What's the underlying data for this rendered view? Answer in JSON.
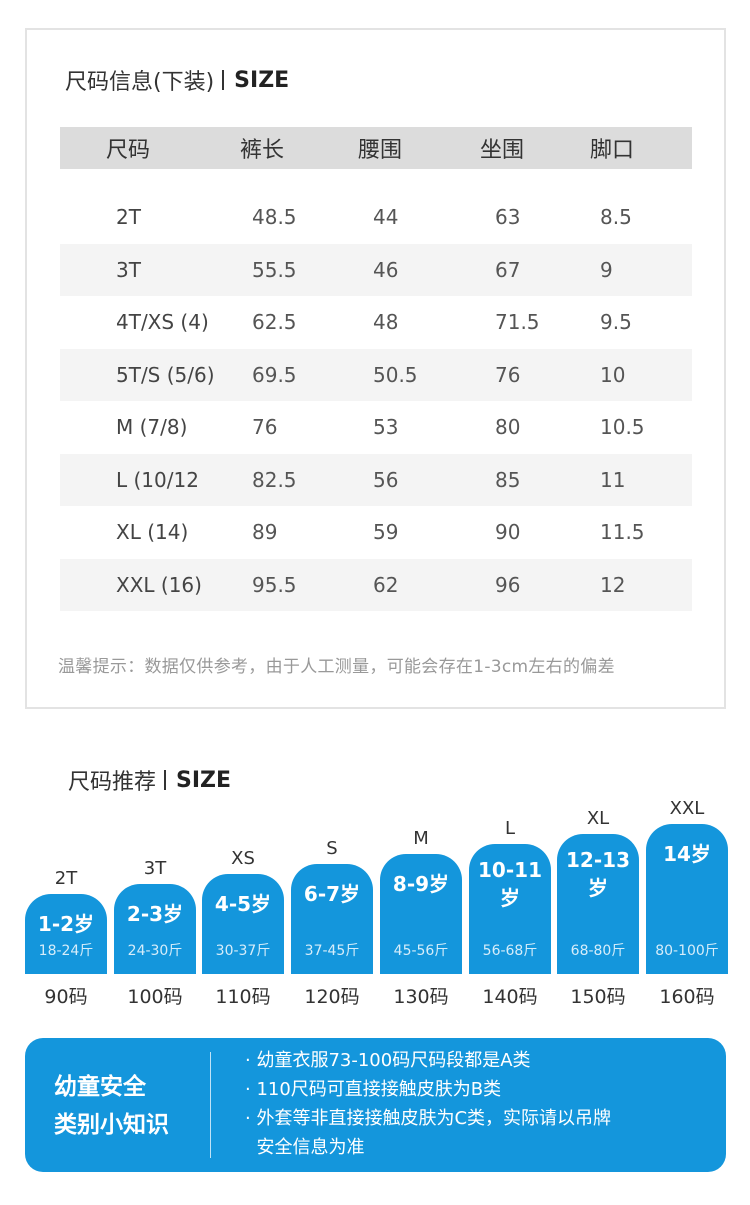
{
  "info": {
    "title_cn": "尺码信息(下装)",
    "title_en": "SIZE",
    "headers": [
      "尺码",
      "裤长",
      "腰围",
      "坐围",
      "脚口"
    ],
    "rows": [
      [
        "2T",
        "48.5",
        "44",
        "63",
        "8.5"
      ],
      [
        "3T",
        "55.5",
        "46",
        "67",
        "9"
      ],
      [
        "4T/XS (4)",
        "62.5",
        "48",
        "71.5",
        "9.5"
      ],
      [
        "5T/S (5/6)",
        "69.5",
        "50.5",
        "76",
        "10"
      ],
      [
        "M (7/8)",
        "76",
        "53",
        "80",
        "10.5"
      ],
      [
        "L (10/12",
        "82.5",
        "56",
        "85",
        "11"
      ],
      [
        "XL (14)",
        "89",
        "59",
        "90",
        "11.5"
      ],
      [
        "XXL (16)",
        "95.5",
        "62",
        "96",
        "12"
      ]
    ],
    "note": "温馨提示：数据仅供参考，由于人工测量，可能会存在1-3cm左右的偏差"
  },
  "recommend": {
    "title_cn": "尺码推荐",
    "title_en": "SIZE",
    "bars": [
      {
        "size": "2T",
        "age": "1-2岁",
        "weight": "18-24斤",
        "code": "90码",
        "level": 1
      },
      {
        "size": "3T",
        "age": "2-3岁",
        "weight": "24-30斤",
        "code": "100码",
        "level": 2
      },
      {
        "size": "XS",
        "age": "4-5岁",
        "weight": "30-37斤",
        "code": "110码",
        "level": 3
      },
      {
        "size": "S",
        "age": "6-7岁",
        "weight": "37-45斤",
        "code": "120码",
        "level": 4
      },
      {
        "size": "M",
        "age": "8-9岁",
        "weight": "45-56斤",
        "code": "130码",
        "level": 5
      },
      {
        "size": "L",
        "age": "10-11岁",
        "weight": "56-68斤",
        "code": "140码",
        "level": 6
      },
      {
        "size": "XL",
        "age": "12-13岁",
        "weight": "68-80斤",
        "code": "150码",
        "level": 7
      },
      {
        "size": "XXL",
        "age": "14岁",
        "weight": "80-100斤",
        "code": "160码",
        "level": 8
      }
    ]
  },
  "safety": {
    "title_line1": "幼童安全",
    "title_line2": "类别小知识",
    "lines": [
      "· 幼童衣服73-100码尺码段都是A类",
      "· 110尺码可直接接触皮肤为B类",
      "· 外套等非直接接触皮肤为C类，实际请以吊牌",
      "  安全信息为准"
    ]
  },
  "colors": {
    "accent": "#1496dc",
    "header_bg": "#dcdcdc",
    "stripe_bg": "#f4f4f4",
    "note": "#999999"
  }
}
